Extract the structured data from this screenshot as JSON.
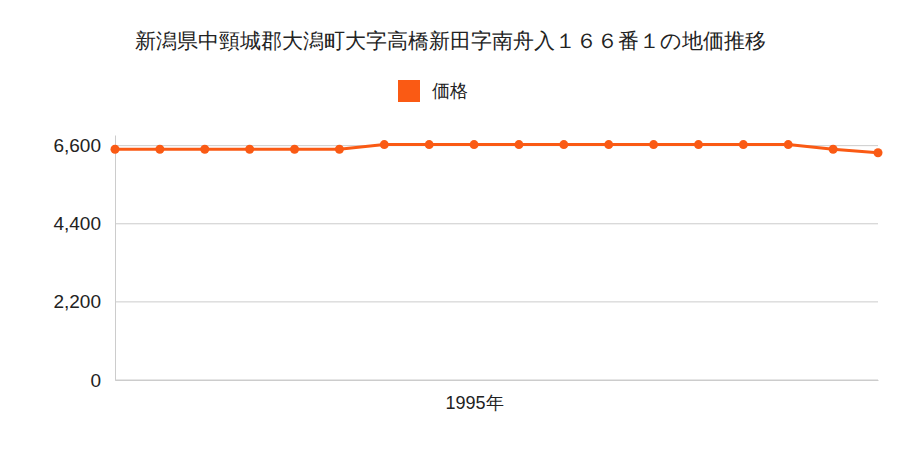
{
  "chart_data": {
    "type": "line",
    "title": "新潟県中頸城郡大潟町大字高橋新田字南舟入１６６番１の地価推移",
    "categories": [
      null,
      null,
      null,
      null,
      null,
      null,
      null,
      null,
      "1995年",
      null,
      null,
      null,
      null,
      null,
      null,
      null,
      null,
      null
    ],
    "series": [
      {
        "name": "価格",
        "color": "#fa5a14",
        "marker": "circle",
        "values": [
          6500,
          6500,
          6500,
          6500,
          6500,
          6500,
          6630,
          6630,
          6630,
          6630,
          6630,
          6630,
          6630,
          6630,
          6630,
          6630,
          6500,
          6400
        ]
      }
    ],
    "ylim": [
      0,
      6900
    ],
    "yticks": [
      0,
      {
        "value": 2200,
        "label": "2,200"
      },
      {
        "value": 4400,
        "label": "4,400"
      },
      {
        "value": 6600,
        "label": "6,600"
      }
    ],
    "grid": true,
    "legend": "top"
  }
}
